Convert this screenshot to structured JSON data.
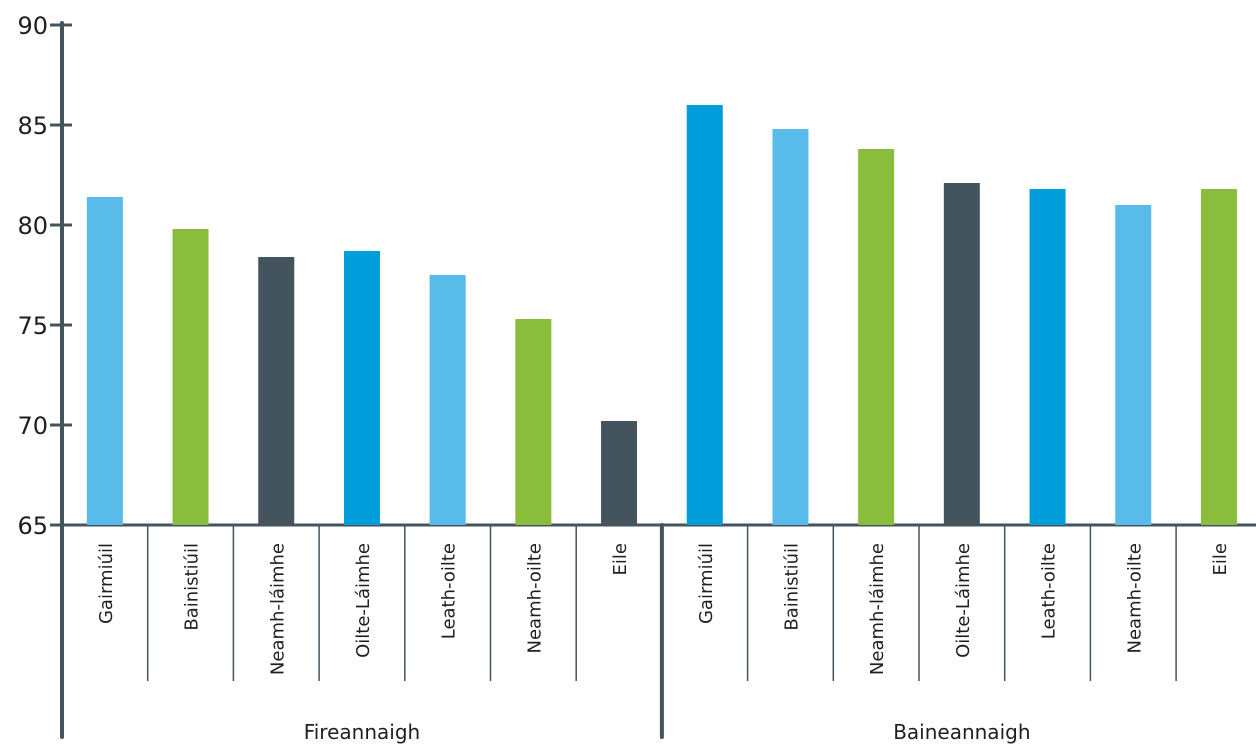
{
  "chart_data": {
    "type": "bar",
    "title": "",
    "xlabel": "",
    "ylabel": "",
    "ylim": [
      65,
      90
    ],
    "yticks": [
      65,
      70,
      75,
      80,
      85,
      90
    ],
    "grid": false,
    "legend": "none",
    "groups": [
      {
        "name": "Fireannaigh",
        "categories": [
          "Gairmiúil",
          "Bainistiúil",
          "Neamh-láimhe",
          "Oilte-Láimhe",
          "Leath-oilte",
          "Neamh-oilte",
          "Eile"
        ],
        "values": [
          81.4,
          79.8,
          78.4,
          78.7,
          77.5,
          75.3,
          70.2
        ],
        "colors": [
          "#58bbea",
          "#8abd3c",
          "#44545f",
          "#009ddb",
          "#58bbea",
          "#8abd3c",
          "#44545f"
        ]
      },
      {
        "name": "Baineannaigh",
        "categories": [
          "Gairmiúil",
          "Bainistiúil",
          "Neamh-láimhe",
          "Oilte-Láimhe",
          "Leath-oilte",
          "Neamh-oilte",
          "Eile"
        ],
        "values": [
          86.0,
          84.8,
          83.8,
          82.1,
          81.8,
          81.0,
          81.8
        ],
        "colors": [
          "#009ddb",
          "#58bbea",
          "#8abd3c",
          "#44545f",
          "#009ddb",
          "#58bbea",
          "#8abd3c"
        ]
      }
    ]
  }
}
